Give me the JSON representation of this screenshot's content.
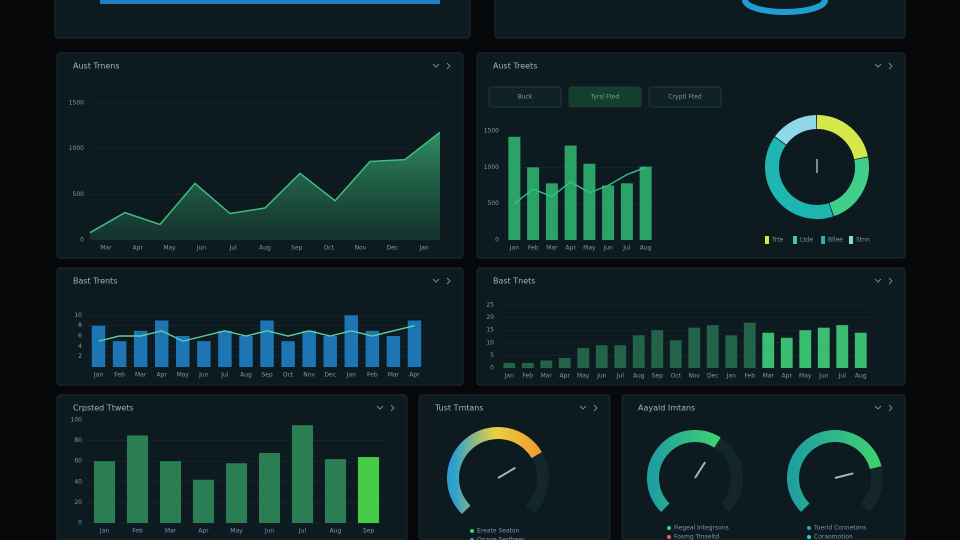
{
  "panels": [
    {
      "title": "Aust Trnens",
      "charts": [
        {
          "type": "area",
          "color": "#3fbf7f",
          "categories": [
            "Mar",
            "Apr",
            "May",
            "Jun",
            "Jul",
            "Aug",
            "Sep",
            "Oct",
            "Nov",
            "Dec",
            "Jan"
          ],
          "values": [
            80,
            300,
            170,
            620,
            290,
            350,
            730,
            430,
            860,
            880,
            1180
          ],
          "ylim": [
            0,
            1500
          ],
          "yticks": [
            0,
            500,
            1000,
            1500
          ]
        }
      ]
    },
    {
      "title": "Aust Treets",
      "buttons": [
        "Buck",
        "Tyrsl Fted",
        "Cryptl Fted"
      ],
      "active": 1,
      "charts": [
        {
          "type": "bar",
          "categories": [
            "Jan",
            "Feb",
            "Mar",
            "Apr",
            "May",
            "Jun",
            "Jul",
            "Aug"
          ],
          "ylim": [
            0,
            1500
          ],
          "yticks": [
            0,
            500,
            1000,
            1500
          ],
          "series": [
            {
              "type": "bar",
              "color": "#2fb36f",
              "values": [
                1420,
                1000,
                780,
                1300,
                1050,
                750,
                780,
                1010
              ]
            },
            {
              "type": "line",
              "color": "#35c08a",
              "values": [
                500,
                700,
                600,
                800,
                650,
                750,
                900,
                1000
              ]
            }
          ]
        },
        {
          "type": "pie",
          "slices": [
            {
              "name": "Trte",
              "color": "#d4e84a",
              "value": 22
            },
            {
              "name": "Ltde",
              "color": "#3fcf8a",
              "value": 23
            },
            {
              "name": "Bllee",
              "color": "#1fb5b0",
              "value": 40
            },
            {
              "name": "Stnn",
              "color": "#8fd8e8",
              "value": 15
            }
          ]
        }
      ]
    },
    {
      "title": "Bast Trents",
      "charts": [
        {
          "type": "bar",
          "categories": [
            "Jan",
            "Feb",
            "Mar",
            "Apr",
            "May",
            "Jun",
            "Jul",
            "Aug",
            "Sep",
            "Oct",
            "Nov",
            "Dec",
            "Jan",
            "Feb",
            "Mar",
            "Apr"
          ],
          "ylim": [
            0,
            12
          ],
          "yticks": [
            2,
            4,
            6,
            8,
            10
          ],
          "series": [
            {
              "type": "bar",
              "color": "#1f7fc4",
              "values": [
                8,
                5,
                7,
                9,
                6,
                5,
                7,
                6,
                9,
                5,
                7,
                6,
                10,
                7,
                6,
                9
              ]
            },
            {
              "type": "line",
              "color": "#5fd0a0",
              "values": [
                5,
                6,
                6,
                7,
                5,
                6,
                7,
                6,
                7,
                6,
                7,
                6,
                7,
                6,
                7,
                8
              ]
            }
          ]
        }
      ]
    },
    {
      "title": "Bast Tnets",
      "charts": [
        {
          "type": "bar",
          "categories": [
            "Jan",
            "Feb",
            "Mar",
            "Apr",
            "May",
            "Jun",
            "Jul",
            "Aug",
            "Sep",
            "Oct",
            "Nov",
            "Dec",
            "Jan",
            "Feb",
            "Mar",
            "Apr",
            "May",
            "Jun",
            "Jul",
            "Aug"
          ],
          "ylim": [
            0,
            25
          ],
          "yticks": [
            0,
            5,
            10,
            15,
            20,
            25
          ],
          "series": [
            {
              "type": "bar",
              "colors": [
                "#256b4f",
                "#256b4f",
                "#256b4f",
                "#256b4f",
                "#256b4f",
                "#256b4f",
                "#256b4f",
                "#256b4f",
                "#256b4f",
                "#256b4f",
                "#256b4f",
                "#256b4f",
                "#256b4f",
                "#256b4f",
                "#3fcf7a",
                "#3fcf7a",
                "#3fcf7a",
                "#3fcf7a",
                "#3fcf7a",
                "#3fcf7a"
              ],
              "values": [
                2,
                2,
                3,
                4,
                8,
                9,
                9,
                13,
                15,
                11,
                16,
                17,
                13,
                18,
                14,
                12,
                15,
                16,
                17,
                14
              ]
            }
          ]
        }
      ]
    },
    {
      "title": "Crpsted Ttwets",
      "charts": [
        {
          "type": "bar",
          "categories": [
            "Jan",
            "Feb",
            "Mar",
            "Apr",
            "May",
            "Jun",
            "Jul",
            "Aug",
            "Sep"
          ],
          "ylim": [
            0,
            100
          ],
          "yticks": [
            0,
            20,
            40,
            60,
            80,
            100
          ],
          "series": [
            {
              "type": "bar",
              "colors": [
                "#2f8a5a",
                "#2f8a5a",
                "#2f8a5a",
                "#2f8a5a",
                "#2f8a5a",
                "#2f8a5a",
                "#2f8a5a",
                "#2f8a5a",
                "#4ee04a"
              ],
              "values": [
                60,
                85,
                60,
                42,
                58,
                68,
                95,
                62,
                64
              ]
            }
          ]
        }
      ]
    },
    {
      "title": "Tust Tmtans",
      "charts": [
        {
          "type": "gauge",
          "value": 72,
          "lim": [
            0,
            100
          ],
          "colors": [
            "#2a9fd0",
            "#e8d040",
            "#f0a030"
          ],
          "legend": [
            {
              "name": "Ereate Seaton",
              "color": "#3fd07a"
            },
            {
              "name": "Onage Sertheer",
              "color": "#2fa0d0"
            }
          ]
        }
      ]
    },
    {
      "title": "Aayald Imtans",
      "charts": [
        {
          "type": "gauge",
          "value": 62,
          "lim": [
            0,
            100
          ],
          "colors": [
            "#1fa0a0",
            "#3fd070"
          ],
          "legend": [
            {
              "name": "Fiegeal Integrsons",
              "color": "#3fd07a"
            },
            {
              "name": "Fosmg Trnseltd",
              "color": "#d06a5a"
            }
          ]
        },
        {
          "type": "gauge",
          "value": 78,
          "lim": [
            0,
            100
          ],
          "colors": [
            "#1fa0a0",
            "#3fd070"
          ],
          "legend": [
            {
              "name": "Tuerid Connetons",
              "color": "#2fa0d0"
            },
            {
              "name": "Coraomotion",
              "color": "#2fd0c0"
            }
          ]
        }
      ]
    }
  ]
}
